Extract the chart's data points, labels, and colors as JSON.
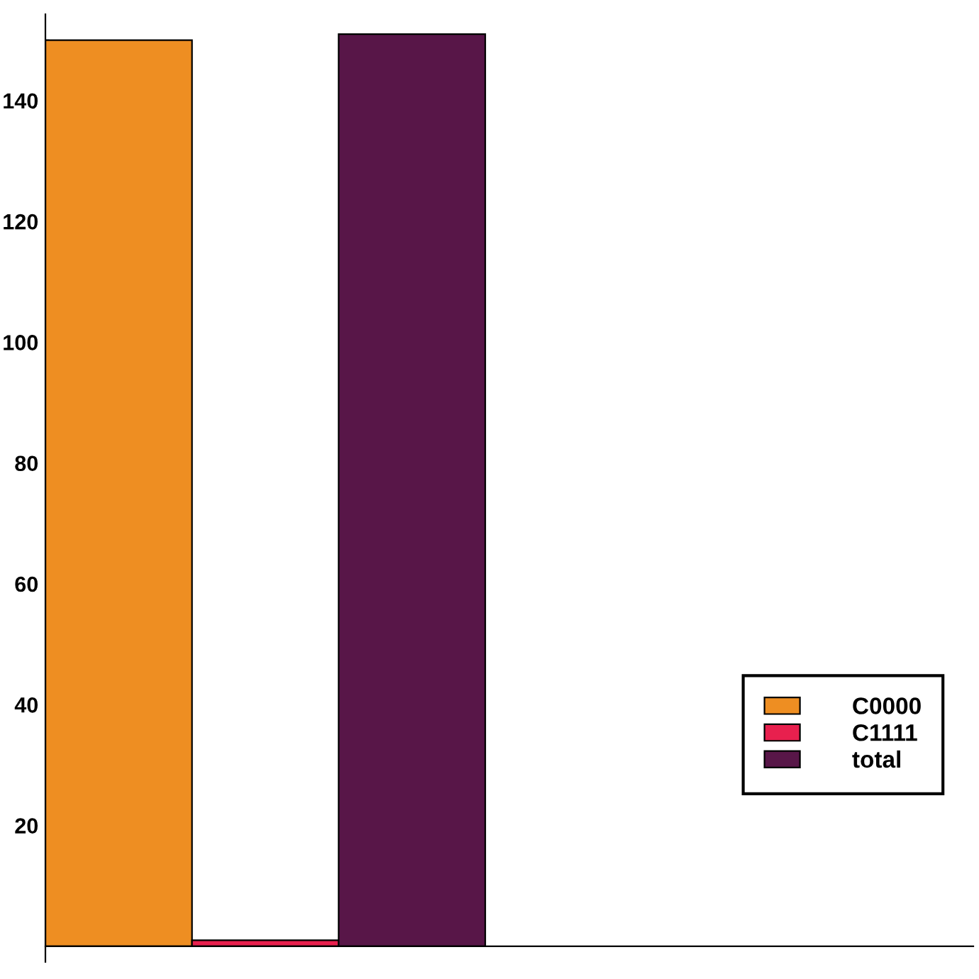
{
  "chart_data": {
    "type": "bar",
    "categories": [
      null
    ],
    "series": [
      {
        "name": "C0000",
        "color": "#ee8e22",
        "values": [
          150
        ]
      },
      {
        "name": "C1111",
        "color": "#e8204e",
        "values": [
          1
        ]
      },
      {
        "name": "total",
        "color": "#581648",
        "values": [
          151
        ]
      }
    ],
    "ylim": [
      -2.6,
      154.3
    ],
    "yticks": [
      20,
      40,
      60,
      80,
      100,
      120,
      140
    ],
    "legend": "lower right",
    "grid": false
  }
}
